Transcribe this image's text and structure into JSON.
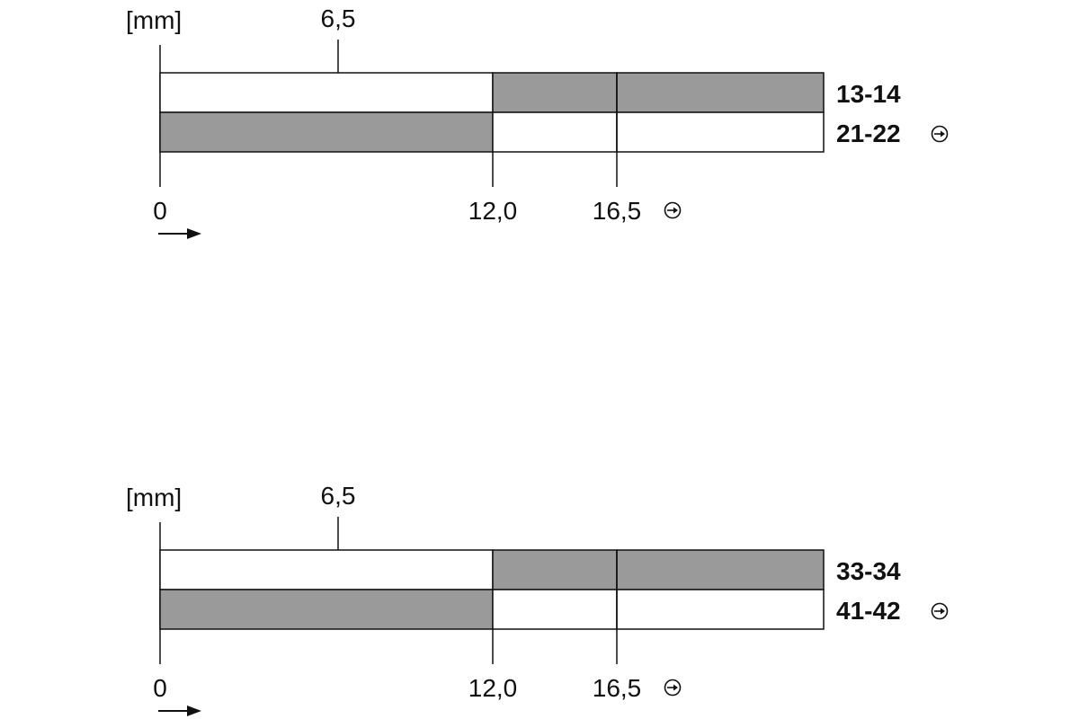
{
  "diagrams": [
    {
      "unit_label": "[mm]",
      "top_marker": "6,5",
      "bottom_ticks": [
        "0",
        "12,0",
        "16,5"
      ],
      "rows": [
        {
          "label": "13-14",
          "segments": [
            false,
            true,
            true
          ],
          "icon": ""
        },
        {
          "label": "21-22",
          "segments": [
            true,
            false,
            false
          ],
          "icon": "positive-opening-icon"
        }
      ],
      "end_icon": "positive-opening-icon",
      "arrow_icon": "direction-arrow-icon"
    },
    {
      "unit_label": "[mm]",
      "top_marker": "6,5",
      "bottom_ticks": [
        "0",
        "12,0",
        "16,5"
      ],
      "rows": [
        {
          "label": "33-34",
          "segments": [
            false,
            true,
            true
          ],
          "icon": ""
        },
        {
          "label": "41-42",
          "segments": [
            true,
            false,
            false
          ],
          "icon": "positive-opening-icon"
        }
      ],
      "end_icon": "positive-opening-icon",
      "arrow_icon": "direction-arrow-icon"
    }
  ],
  "colors": {
    "active": "#9a9a9a",
    "inactive": "#ffffff",
    "line": "#111111"
  }
}
